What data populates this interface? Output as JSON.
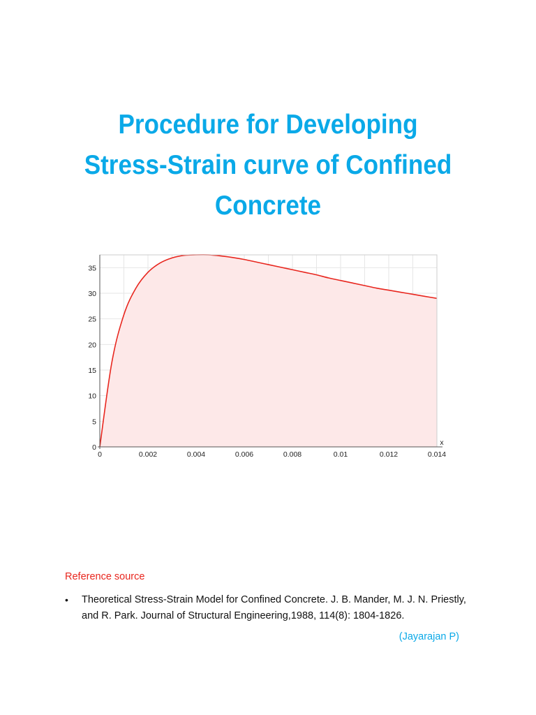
{
  "document": {
    "title_lines": [
      "Procedure for Developing",
      "Stress-Strain curve of Confined",
      "Concrete"
    ]
  },
  "chart_data": {
    "type": "area",
    "title": "",
    "xlabel": "x",
    "ylabel": "",
    "xlim": [
      0,
      0.014
    ],
    "ylim": [
      0,
      37.5
    ],
    "x_ticks": [
      "0",
      "0.002",
      "0.004",
      "0.006",
      "0.008",
      "0.01",
      "0.012",
      "0.014"
    ],
    "y_ticks": [
      "0",
      "5",
      "10",
      "15",
      "20",
      "25",
      "30",
      "35"
    ],
    "grid": true,
    "line_color": "#e8261e",
    "fill_color": "#fde8e8",
    "x": [
      0,
      0.0005,
      0.001,
      0.0015,
      0.002,
      0.0025,
      0.003,
      0.0035,
      0.004,
      0.0045,
      0.005,
      0.0055,
      0.006,
      0.0065,
      0.007,
      0.0075,
      0.008,
      0.0085,
      0.009,
      0.0095,
      0.01,
      0.0105,
      0.011,
      0.0115,
      0.012,
      0.0125,
      0.013,
      0.0135,
      0.014
    ],
    "y": [
      0,
      16.5,
      25.8,
      31.0,
      34.1,
      35.9,
      36.9,
      37.4,
      37.5,
      37.5,
      37.3,
      37.0,
      36.6,
      36.1,
      35.6,
      35.1,
      34.6,
      34.1,
      33.6,
      33.0,
      32.5,
      32.0,
      31.5,
      31.0,
      30.6,
      30.2,
      29.8,
      29.4,
      29.0
    ]
  },
  "references": {
    "heading": "Reference source",
    "items": [
      "Theoretical Stress-Strain Model for Confined Concrete. J. B. Mander, M. J. N. Priestly, and R. Park. Journal of Structural Engineering,1988, 114(8): 1804-1826."
    ],
    "bullet": "•",
    "author": "(Jayarajan P)"
  }
}
